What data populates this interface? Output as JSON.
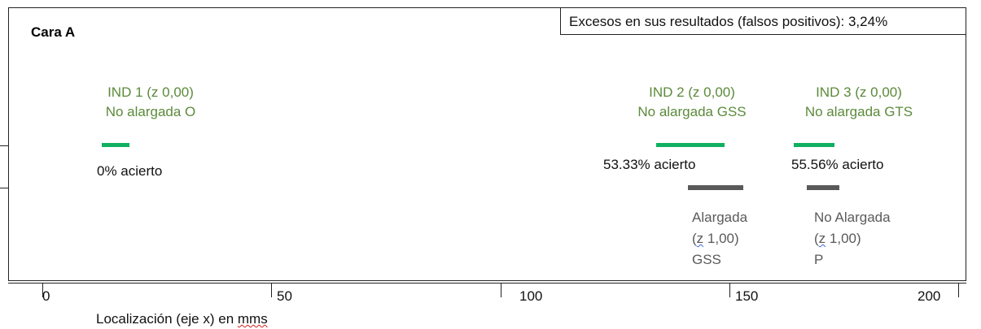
{
  "header": {
    "face_title": "Cara A",
    "summary": "Excesos en sus resultados (falsos positivos): 3,24%"
  },
  "indications": [
    {
      "line1": "IND 1 (z 0,00)",
      "line2": "No alargada O",
      "accuracy": "0% acierto",
      "x_range": [
        13,
        19
      ]
    },
    {
      "line1": "IND 2 (z 0,00)",
      "line2": "No alargada GSS",
      "accuracy": "53.33% acierto",
      "x_range": [
        134,
        149
      ]
    },
    {
      "line1": "IND 3 (z 0,00)",
      "line2": "No alargada GTS",
      "accuracy": "55.56% acierto",
      "x_range": [
        164,
        173
      ]
    }
  ],
  "actual": [
    {
      "line1": "Alargada",
      "line2_prefix": "(",
      "line2_z": "z",
      "line2_rest": " 1,00)",
      "line3": "GSS",
      "x_range": [
        141,
        153
      ]
    },
    {
      "line1": "No Alargada",
      "line2_prefix": "(",
      "line2_z": "z",
      "line2_rest": " 1,00)",
      "line3": "P",
      "x_range": [
        167,
        174
      ]
    }
  ],
  "axis": {
    "ticks": [
      "0",
      "50",
      "100",
      "150",
      "200"
    ],
    "title_prefix": "Localización (eje x) en ",
    "title_unit": "mms",
    "range": [
      0,
      200
    ]
  },
  "colors": {
    "green_label": "#5b8a3a",
    "green_bar": "#10b060",
    "gray_bar": "#595959"
  }
}
